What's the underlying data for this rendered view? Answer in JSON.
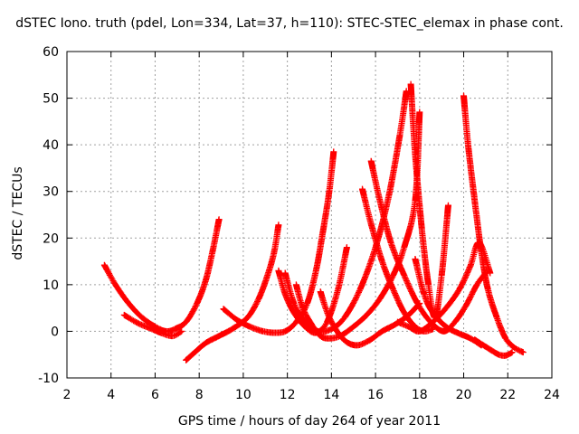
{
  "chart_data": {
    "type": "scatter",
    "title": "dSTEC Iono. truth (pdel, Lon=334, Lat=37, h=110): STEC-STEC_elemax in phase cont.",
    "xlabel": "GPS time / hours of day 264 of year 2011",
    "ylabel": "dSTEC  / TECUs",
    "xlim": [
      2,
      24
    ],
    "ylim": [
      -10,
      60
    ],
    "x_ticks": [
      2,
      4,
      6,
      8,
      10,
      12,
      14,
      16,
      18,
      20,
      22,
      24
    ],
    "y_ticks": [
      -10,
      0,
      10,
      20,
      30,
      40,
      50,
      60
    ],
    "grid": true,
    "marker": "+",
    "color": "#ff0000",
    "series": [
      {
        "x": [
          3.7,
          4.2,
          4.8,
          5.4,
          6.0,
          6.5,
          6.9,
          7.4,
          7.9,
          8.3,
          8.6,
          8.9
        ],
        "y": [
          14.2,
          10.0,
          6.0,
          3.0,
          1.0,
          0.0,
          0.5,
          2.0,
          6.0,
          11.0,
          17.0,
          24.0
        ]
      },
      {
        "x": [
          4.6,
          5.2,
          5.8,
          6.3,
          6.8,
          7.2
        ],
        "y": [
          3.5,
          1.8,
          0.6,
          -0.4,
          -1.0,
          0.0
        ]
      },
      {
        "x": [
          7.4,
          7.8,
          8.3,
          8.9,
          9.5,
          10.2,
          10.7,
          11.1,
          11.4,
          11.6
        ],
        "y": [
          -6.2,
          -4.5,
          -2.5,
          -1.0,
          0.5,
          3.0,
          7.0,
          12.0,
          17.0,
          22.8
        ]
      },
      {
        "x": [
          9.1,
          9.7,
          10.3,
          10.9,
          11.4,
          11.9,
          12.4,
          12.9,
          13.3,
          13.6,
          13.9,
          14.1
        ],
        "y": [
          4.8,
          2.5,
          1.0,
          0.0,
          -0.3,
          0.0,
          2.0,
          6.0,
          13.0,
          21.0,
          30.0,
          38.5
        ]
      },
      {
        "x": [
          11.6,
          11.9,
          12.3,
          12.8,
          13.3,
          13.8,
          14.3,
          14.7
        ],
        "y": [
          13.0,
          8.0,
          4.0,
          1.0,
          -0.3,
          2.0,
          9.0,
          18.0
        ]
      },
      {
        "x": [
          11.9,
          12.3,
          12.8,
          13.4,
          14.0,
          14.6,
          15.3,
          16.0,
          16.6,
          17.1,
          17.4
        ],
        "y": [
          12.5,
          6.0,
          2.0,
          0.0,
          0.5,
          3.0,
          9.0,
          18.0,
          29.0,
          42.0,
          51.5
        ]
      },
      {
        "x": [
          12.4,
          12.7,
          13.1,
          13.5,
          13.9,
          14.4,
          15.0,
          15.6,
          16.2,
          16.8,
          17.3,
          17.8,
          18.0
        ],
        "y": [
          10.0,
          5.0,
          1.5,
          -1.0,
          -1.5,
          -1.0,
          1.0,
          3.5,
          7.0,
          12.0,
          18.0,
          28.0,
          47.0
        ]
      },
      {
        "x": [
          13.5,
          13.9,
          14.5,
          15.1,
          15.7,
          16.3,
          16.9,
          17.5,
          18.0
        ],
        "y": [
          8.5,
          3.0,
          -1.5,
          -3.0,
          -2.0,
          0.0,
          1.5,
          3.5,
          6.0
        ]
      },
      {
        "x": [
          15.4,
          15.8,
          16.3,
          16.8,
          17.3,
          17.8,
          18.2,
          18.6
        ],
        "y": [
          30.5,
          23.0,
          15.0,
          9.0,
          4.0,
          1.0,
          0.0,
          0.5
        ]
      },
      {
        "x": [
          15.8,
          16.2,
          16.7,
          17.3,
          17.9,
          18.5,
          19.1,
          19.6,
          20.1,
          20.6,
          21.0
        ],
        "y": [
          36.5,
          28.0,
          19.0,
          12.0,
          6.0,
          2.0,
          0.0,
          2.0,
          5.5,
          10.0,
          12.5
        ]
      },
      {
        "x": [
          17.6,
          17.8,
          18.1,
          18.4,
          18.7,
          19.0,
          19.3
        ],
        "y": [
          53.0,
          38.0,
          22.0,
          10.0,
          3.0,
          12.0,
          27.0
        ]
      },
      {
        "x": [
          17.0,
          17.5,
          18.0,
          18.6,
          19.2,
          19.8,
          20.3,
          20.7,
          21.2
        ],
        "y": [
          2.0,
          1.0,
          0.0,
          2.0,
          5.0,
          9.0,
          14.0,
          19.0,
          12.5
        ]
      },
      {
        "x": [
          17.8,
          18.2,
          18.6,
          19.2,
          19.8,
          20.3,
          20.8
        ],
        "y": [
          15.5,
          8.0,
          4.0,
          1.0,
          -0.5,
          -1.5,
          -3.0
        ]
      },
      {
        "x": [
          20.0,
          20.2,
          20.5,
          20.8,
          21.1,
          21.5,
          21.9,
          22.3,
          22.7
        ],
        "y": [
          50.5,
          40.0,
          28.0,
          17.0,
          9.0,
          3.0,
          -1.5,
          -3.5,
          -4.5
        ]
      },
      {
        "x": [
          20.5,
          20.9,
          21.3,
          21.6,
          21.9,
          22.2
        ],
        "y": [
          -1.8,
          -3.0,
          -4.2,
          -5.0,
          -5.2,
          -4.5
        ]
      }
    ]
  }
}
